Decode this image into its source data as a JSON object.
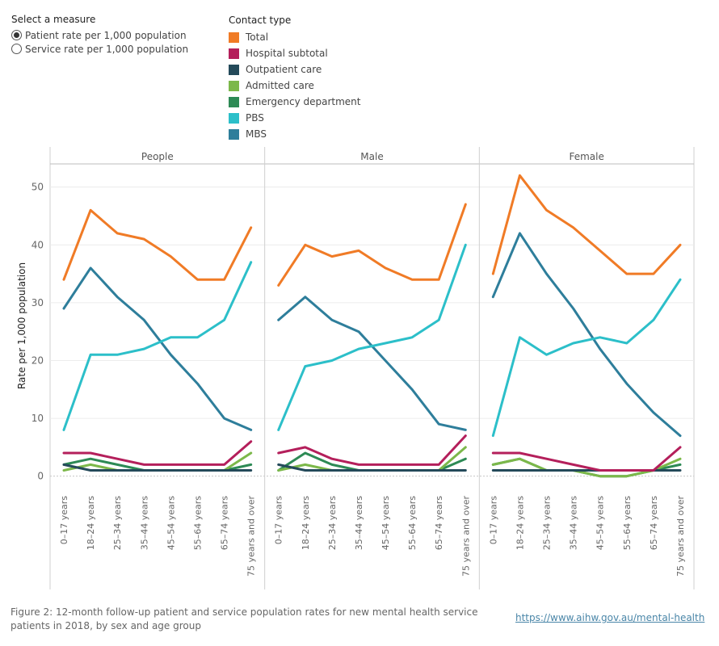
{
  "measure_selector": {
    "title": "Select a measure",
    "options": [
      {
        "label": "Patient rate per 1,000 population",
        "selected": true
      },
      {
        "label": "Service rate per 1,000 population",
        "selected": false
      }
    ]
  },
  "legend": {
    "title": "Contact type",
    "items": [
      {
        "label": "Total",
        "color": "#f07b26"
      },
      {
        "label": "Hospital subtotal",
        "color": "#b41f5b"
      },
      {
        "label": "Outpatient care",
        "color": "#244a5a"
      },
      {
        "label": "Admitted care",
        "color": "#7cb84a"
      },
      {
        "label": "Emergency department",
        "color": "#2d8a55"
      },
      {
        "label": "PBS",
        "color": "#2cbfc9"
      },
      {
        "label": "MBS",
        "color": "#2e7e9b"
      }
    ]
  },
  "chart_data": {
    "type": "line",
    "ylabel": "Rate per 1,000 population",
    "ylim": [
      -2,
      54
    ],
    "yticks": [
      0,
      10,
      20,
      30,
      40,
      50
    ],
    "categories": [
      "0–17 years",
      "18–24 years",
      "25–34 years",
      "35–44 years",
      "45–54 years",
      "55–64 years",
      "65–74 years",
      "75 years and over"
    ],
    "grid": "horizontal",
    "panels": [
      {
        "title": "People",
        "series": [
          {
            "name": "Total",
            "values": [
              34,
              46,
              42,
              41,
              38,
              34,
              34,
              43
            ]
          },
          {
            "name": "Hospital subtotal",
            "values": [
              4,
              4,
              3,
              2,
              2,
              2,
              2,
              6
            ]
          },
          {
            "name": "Outpatient care",
            "values": [
              2,
              1,
              1,
              1,
              1,
              1,
              1,
              1
            ]
          },
          {
            "name": "Admitted care",
            "values": [
              1,
              2,
              1,
              1,
              1,
              1,
              1,
              4
            ]
          },
          {
            "name": "Emergency department",
            "values": [
              2,
              3,
              2,
              1,
              1,
              1,
              1,
              2
            ]
          },
          {
            "name": "PBS",
            "values": [
              8,
              21,
              21,
              22,
              24,
              24,
              27,
              37
            ]
          },
          {
            "name": "MBS",
            "values": [
              29,
              36,
              31,
              27,
              21,
              16,
              10,
              8
            ]
          }
        ]
      },
      {
        "title": "Male",
        "series": [
          {
            "name": "Total",
            "values": [
              33,
              40,
              38,
              39,
              36,
              34,
              34,
              47
            ]
          },
          {
            "name": "Hospital subtotal",
            "values": [
              4,
              5,
              3,
              2,
              2,
              2,
              2,
              7
            ]
          },
          {
            "name": "Outpatient care",
            "values": [
              2,
              1,
              1,
              1,
              1,
              1,
              1,
              1
            ]
          },
          {
            "name": "Admitted care",
            "values": [
              1,
              2,
              1,
              1,
              1,
              1,
              1,
              5
            ]
          },
          {
            "name": "Emergency department",
            "values": [
              1,
              4,
              2,
              1,
              1,
              1,
              1,
              3
            ]
          },
          {
            "name": "PBS",
            "values": [
              8,
              19,
              20,
              22,
              23,
              24,
              27,
              40
            ]
          },
          {
            "name": "MBS",
            "values": [
              27,
              31,
              27,
              25,
              20,
              15,
              9,
              8
            ]
          }
        ]
      },
      {
        "title": "Female",
        "series": [
          {
            "name": "Total",
            "values": [
              35,
              52,
              46,
              43,
              39,
              35,
              35,
              40
            ]
          },
          {
            "name": "Hospital subtotal",
            "values": [
              4,
              4,
              3,
              2,
              1,
              1,
              1,
              5
            ]
          },
          {
            "name": "Outpatient care",
            "values": [
              1,
              1,
              1,
              1,
              1,
              1,
              1,
              1
            ]
          },
          {
            "name": "Admitted care",
            "values": [
              2,
              3,
              1,
              1,
              0,
              0,
              1,
              3
            ]
          },
          {
            "name": "Emergency department",
            "values": [
              2,
              3,
              1,
              1,
              0,
              0,
              1,
              2
            ]
          },
          {
            "name": "PBS",
            "values": [
              7,
              24,
              21,
              23,
              24,
              23,
              27,
              34
            ]
          },
          {
            "name": "MBS",
            "values": [
              31,
              42,
              35,
              29,
              22,
              16,
              11,
              7
            ]
          }
        ]
      }
    ]
  },
  "caption": "Figure 2: 12-month follow-up patient and service population rates for new mental health service patients in 2018, by sex and  age group",
  "source_link": "https://www.aihw.gov.au/mental-health"
}
